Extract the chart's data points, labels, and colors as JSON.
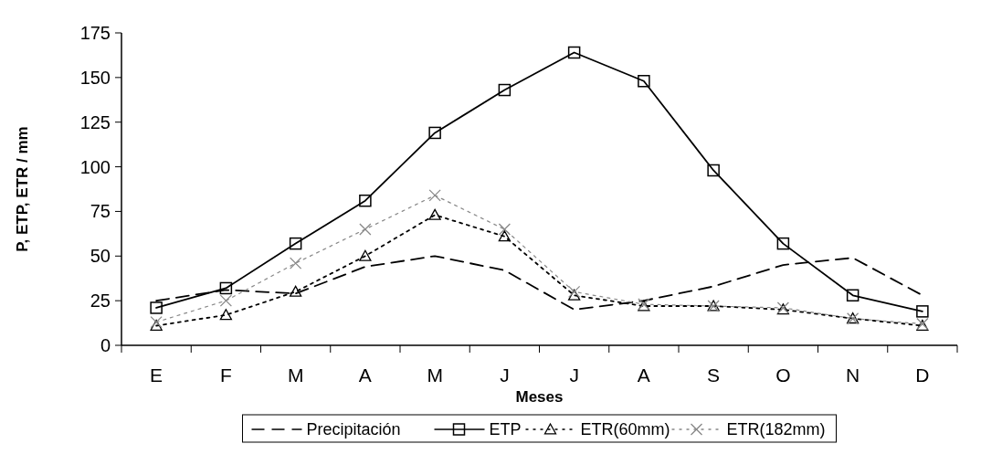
{
  "chart_data": {
    "type": "line",
    "xlabel": "Meses",
    "ylabel": "P, ETP, ETR / mm",
    "categories": [
      "E",
      "F",
      "M",
      "A",
      "M",
      "J",
      "J",
      "A",
      "S",
      "O",
      "N",
      "D"
    ],
    "ylim": [
      0,
      175
    ],
    "yticks": [
      0,
      25,
      50,
      75,
      100,
      125,
      150,
      175
    ],
    "legend": "bottom",
    "grid": false,
    "series": [
      {
        "name": "Precipitación",
        "color": "#000000",
        "line_style": "dashed",
        "marker": "none",
        "values": [
          25,
          31,
          29,
          44,
          50,
          42,
          20,
          25,
          33,
          45,
          49,
          28
        ]
      },
      {
        "name": "ETP",
        "color": "#000000",
        "line_style": "solid",
        "marker": "square",
        "values": [
          21,
          32,
          57,
          81,
          119,
          143,
          164,
          148,
          98,
          57,
          28,
          19
        ]
      },
      {
        "name": "ETR(60mm)",
        "color": "#000000",
        "line_style": "dotted",
        "marker": "triangle",
        "values": [
          11,
          17,
          30,
          50,
          73,
          61,
          28,
          22,
          22,
          20,
          15,
          11
        ]
      },
      {
        "name": "ETR(182mm)",
        "color": "#888888",
        "line_style": "dotted",
        "marker": "cross",
        "values": [
          13,
          25,
          46,
          65,
          84,
          65,
          30,
          23,
          22,
          21,
          15,
          12
        ]
      }
    ]
  }
}
